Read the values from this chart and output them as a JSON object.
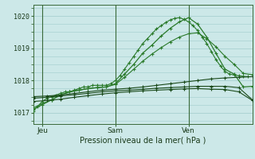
{
  "title": "Pression niveau de la mer( hPa )",
  "ylabel_values": [
    1017,
    1018,
    1019,
    1020
  ],
  "xlim": [
    0,
    48
  ],
  "ylim": [
    1016.65,
    1020.35
  ],
  "background_color": "#cce8e8",
  "grid_color": "#a0cccc",
  "xtick_positions": [
    2,
    18,
    34
  ],
  "xtick_labels": [
    "Jeu",
    "Sam",
    "Ven"
  ],
  "vline_positions": [
    2,
    18,
    34
  ],
  "series": [
    {
      "x": [
        0,
        1,
        2,
        3,
        4,
        5,
        6,
        7,
        8,
        9,
        10,
        11,
        12,
        13,
        14,
        15,
        16,
        17,
        18,
        19,
        20,
        21,
        22,
        23,
        24,
        25,
        26,
        27,
        28,
        29,
        30,
        31,
        32,
        33,
        34,
        35,
        36,
        37,
        38,
        39,
        40,
        41,
        42,
        43,
        44,
        45,
        46,
        47
      ],
      "y": [
        1017.05,
        1017.2,
        1017.35,
        1017.45,
        1017.5,
        1017.55,
        1017.6,
        1017.65,
        1017.65,
        1017.7,
        1017.75,
        1017.8,
        1017.8,
        1017.85,
        1017.85,
        1017.85,
        1017.85,
        1017.9,
        1018.0,
        1018.15,
        1018.35,
        1018.55,
        1018.75,
        1018.95,
        1019.15,
        1019.3,
        1019.45,
        1019.6,
        1019.7,
        1019.8,
        1019.88,
        1019.93,
        1019.95,
        1019.9,
        1019.82,
        1019.7,
        1019.55,
        1019.35,
        1019.15,
        1018.9,
        1018.65,
        1018.45,
        1018.28,
        1018.2,
        1018.17,
        1018.15,
        1018.13,
        1018.12
      ],
      "color": "#2a7a2a",
      "marker": "+",
      "markersize": 3.5,
      "lw": 0.8
    },
    {
      "x": [
        0,
        2,
        4,
        6,
        8,
        10,
        12,
        14,
        16,
        18,
        20,
        22,
        24,
        26,
        28,
        30,
        32,
        34,
        36,
        38,
        40,
        42,
        44,
        46,
        48
      ],
      "y": [
        1017.1,
        1017.25,
        1017.4,
        1017.55,
        1017.65,
        1017.7,
        1017.75,
        1017.78,
        1017.8,
        1017.9,
        1018.2,
        1018.5,
        1018.85,
        1019.1,
        1019.38,
        1019.62,
        1019.82,
        1019.95,
        1019.75,
        1019.35,
        1018.85,
        1018.35,
        1018.2,
        1017.8,
        1017.82
      ],
      "color": "#2a7a2a",
      "marker": "+",
      "markersize": 3.5,
      "lw": 0.9
    },
    {
      "x": [
        0,
        2,
        4,
        6,
        8,
        10,
        12,
        14,
        16,
        18,
        20,
        22,
        24,
        26,
        28,
        30,
        32,
        34,
        36,
        38,
        40,
        42,
        44,
        46,
        48
      ],
      "y": [
        1017.15,
        1017.28,
        1017.4,
        1017.55,
        1017.65,
        1017.7,
        1017.75,
        1017.78,
        1017.8,
        1017.88,
        1018.1,
        1018.35,
        1018.6,
        1018.82,
        1019.02,
        1019.2,
        1019.35,
        1019.45,
        1019.48,
        1019.3,
        1019.05,
        1018.75,
        1018.5,
        1018.22,
        1018.18
      ],
      "color": "#2a7a2a",
      "marker": "+",
      "markersize": 3.0,
      "lw": 0.8
    },
    {
      "x": [
        0,
        3,
        6,
        9,
        12,
        15,
        18,
        21,
        24,
        27,
        30,
        33,
        36,
        39,
        42,
        45,
        48
      ],
      "y": [
        1017.5,
        1017.52,
        1017.55,
        1017.6,
        1017.65,
        1017.7,
        1017.73,
        1017.76,
        1017.8,
        1017.85,
        1017.9,
        1017.95,
        1018.0,
        1018.05,
        1018.08,
        1018.1,
        1018.12
      ],
      "color": "#1a4a1a",
      "marker": "+",
      "markersize": 2.5,
      "lw": 0.8
    },
    {
      "x": [
        0,
        3,
        6,
        9,
        12,
        15,
        18,
        21,
        24,
        27,
        30,
        33,
        36,
        39,
        42,
        45,
        48
      ],
      "y": [
        1017.45,
        1017.48,
        1017.52,
        1017.56,
        1017.6,
        1017.65,
        1017.68,
        1017.7,
        1017.73,
        1017.76,
        1017.78,
        1017.8,
        1017.82,
        1017.82,
        1017.82,
        1017.78,
        1017.4
      ],
      "color": "#1a4a1a",
      "marker": "+",
      "markersize": 2.5,
      "lw": 0.8
    },
    {
      "x": [
        0,
        3,
        6,
        9,
        12,
        15,
        18,
        21,
        24,
        27,
        30,
        33,
        36,
        39,
        42,
        45,
        48
      ],
      "y": [
        1017.35,
        1017.38,
        1017.42,
        1017.48,
        1017.53,
        1017.58,
        1017.62,
        1017.65,
        1017.68,
        1017.7,
        1017.72,
        1017.74,
        1017.75,
        1017.73,
        1017.72,
        1017.65,
        1017.38
      ],
      "color": "#1a4a1a",
      "marker": "+",
      "markersize": 2.5,
      "lw": 0.8
    }
  ]
}
